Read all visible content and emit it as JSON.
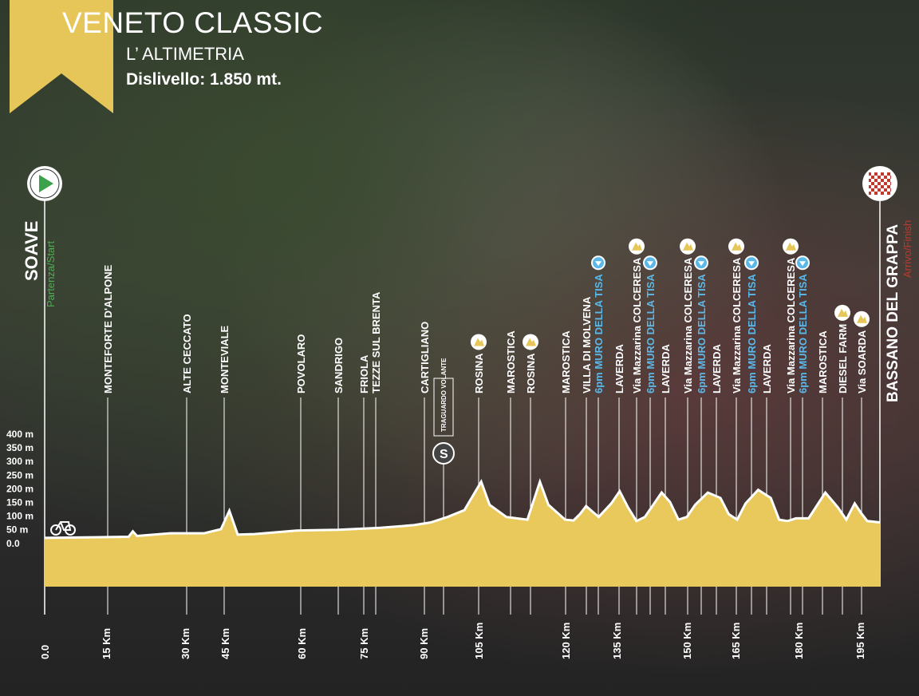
{
  "header": {
    "title": "VENETO CLASSIC",
    "subtitle": "L’ ALTIMETRIA",
    "elevation_gain": "Dislivello: 1.850 mt."
  },
  "colors": {
    "profile_fill": "#e9c85c",
    "ribbon": "#e6c658",
    "start_green": "#4caf50",
    "finish_red": "#c0392b",
    "climb_blue": "#5bb8e8"
  },
  "start": {
    "name": "SOAVE",
    "caption": "Partenza/Start",
    "icon": "play-icon"
  },
  "finish": {
    "name": "BASSANO DEL GRAPPA",
    "caption": "Arrivo/Finish",
    "icon": "checkered-flag-icon"
  },
  "chart_data": {
    "type": "area",
    "ylim": [
      0,
      400
    ],
    "xlim": [
      0,
      199
    ],
    "y_ticks": [
      "400 m",
      "350 m",
      "300 m",
      "250 m",
      "200 m",
      "150 m",
      "100 m",
      "50 m",
      "0.0"
    ],
    "x_ticks": [
      "0.0",
      "15 Km",
      "30 Km",
      "45 Km",
      "60 Km",
      "75 Km",
      "90 Km",
      "105 Km",
      "120 Km",
      "135 Km",
      "150 Km",
      "165 Km",
      "180 Km",
      "195 Km"
    ],
    "x": [
      0,
      10,
      20,
      21,
      22,
      30,
      38,
      42,
      44,
      46,
      50,
      60,
      70,
      80,
      88,
      92,
      96,
      100,
      104,
      106,
      110,
      115,
      118,
      120,
      124,
      126,
      127.5,
      129,
      132,
      135,
      137,
      139,
      141,
      143,
      147,
      149,
      151,
      153,
      155,
      158,
      161,
      163,
      165,
      167,
      170,
      173,
      175,
      177,
      179,
      182,
      186,
      189,
      191,
      193,
      194.5,
      196,
      199
    ],
    "values": [
      18,
      20,
      22,
      42,
      25,
      35,
      35,
      50,
      118,
      30,
      32,
      45,
      48,
      55,
      65,
      75,
      95,
      120,
      225,
      140,
      95,
      85,
      225,
      140,
      85,
      82,
      105,
      135,
      95,
      145,
      190,
      130,
      80,
      95,
      185,
      150,
      85,
      95,
      140,
      185,
      165,
      105,
      85,
      145,
      195,
      165,
      85,
      80,
      90,
      90,
      185,
      130,
      85,
      145,
      110,
      80,
      75
    ],
    "places": [
      {
        "name": "MONTEFORTE D'ALPONE",
        "km": 15
      },
      {
        "name": "ALTE CECCATO",
        "km": 33
      },
      {
        "name": "MONTEVIALE",
        "km": 42
      },
      {
        "name": "POVOLARO",
        "km": 61
      },
      {
        "name": "SANDRIGO",
        "km": 70
      },
      {
        "name": "FRIOLA",
        "km": 75
      },
      {
        "name": "TEZZE SUL BRENTA",
        "km": 77
      },
      {
        "name": "CARTIGLIANO",
        "km": 91
      },
      {
        "name": "TRAGUARDO VOLANTE",
        "km": 95
      },
      {
        "name": "ROSINA",
        "km": 104
      },
      {
        "name": "MAROSTICA",
        "km": 111
      },
      {
        "name": "ROSINA",
        "km": 116
      },
      {
        "name": "MAROSTICA",
        "km": 124
      },
      {
        "name": "VILLA DI MOLVENA",
        "km": 128
      },
      {
        "name": "6pm MURO DELLA TISA",
        "km": 131
      },
      {
        "name": "LAVERDA",
        "km": 134
      },
      {
        "name": "Via Mazzarina COLCERESA",
        "km": 139
      },
      {
        "name": "6pm MURO DELLA TISA",
        "km": 142
      },
      {
        "name": "LAVERDA",
        "km": 145
      },
      {
        "name": "Via Mazzarina COLCERESA",
        "km": 150
      },
      {
        "name": "6pm MURO DELLA TISA",
        "km": 153
      },
      {
        "name": "LAVERDA",
        "km": 157
      },
      {
        "name": "Via Mazzarina COLCERESA",
        "km": 162
      },
      {
        "name": "6pm MURO DELLA TISA",
        "km": 165
      },
      {
        "name": "LAVERDA",
        "km": 169
      },
      {
        "name": "Via Mazzarina COLCERESA",
        "km": 174
      },
      {
        "name": "6pm MURO DELLA TISA",
        "km": 177
      },
      {
        "name": "MAROSTICA",
        "km": 181
      },
      {
        "name": "DIESEL FARM",
        "km": 187
      },
      {
        "name": "Via SOARDA",
        "km": 192
      }
    ]
  }
}
